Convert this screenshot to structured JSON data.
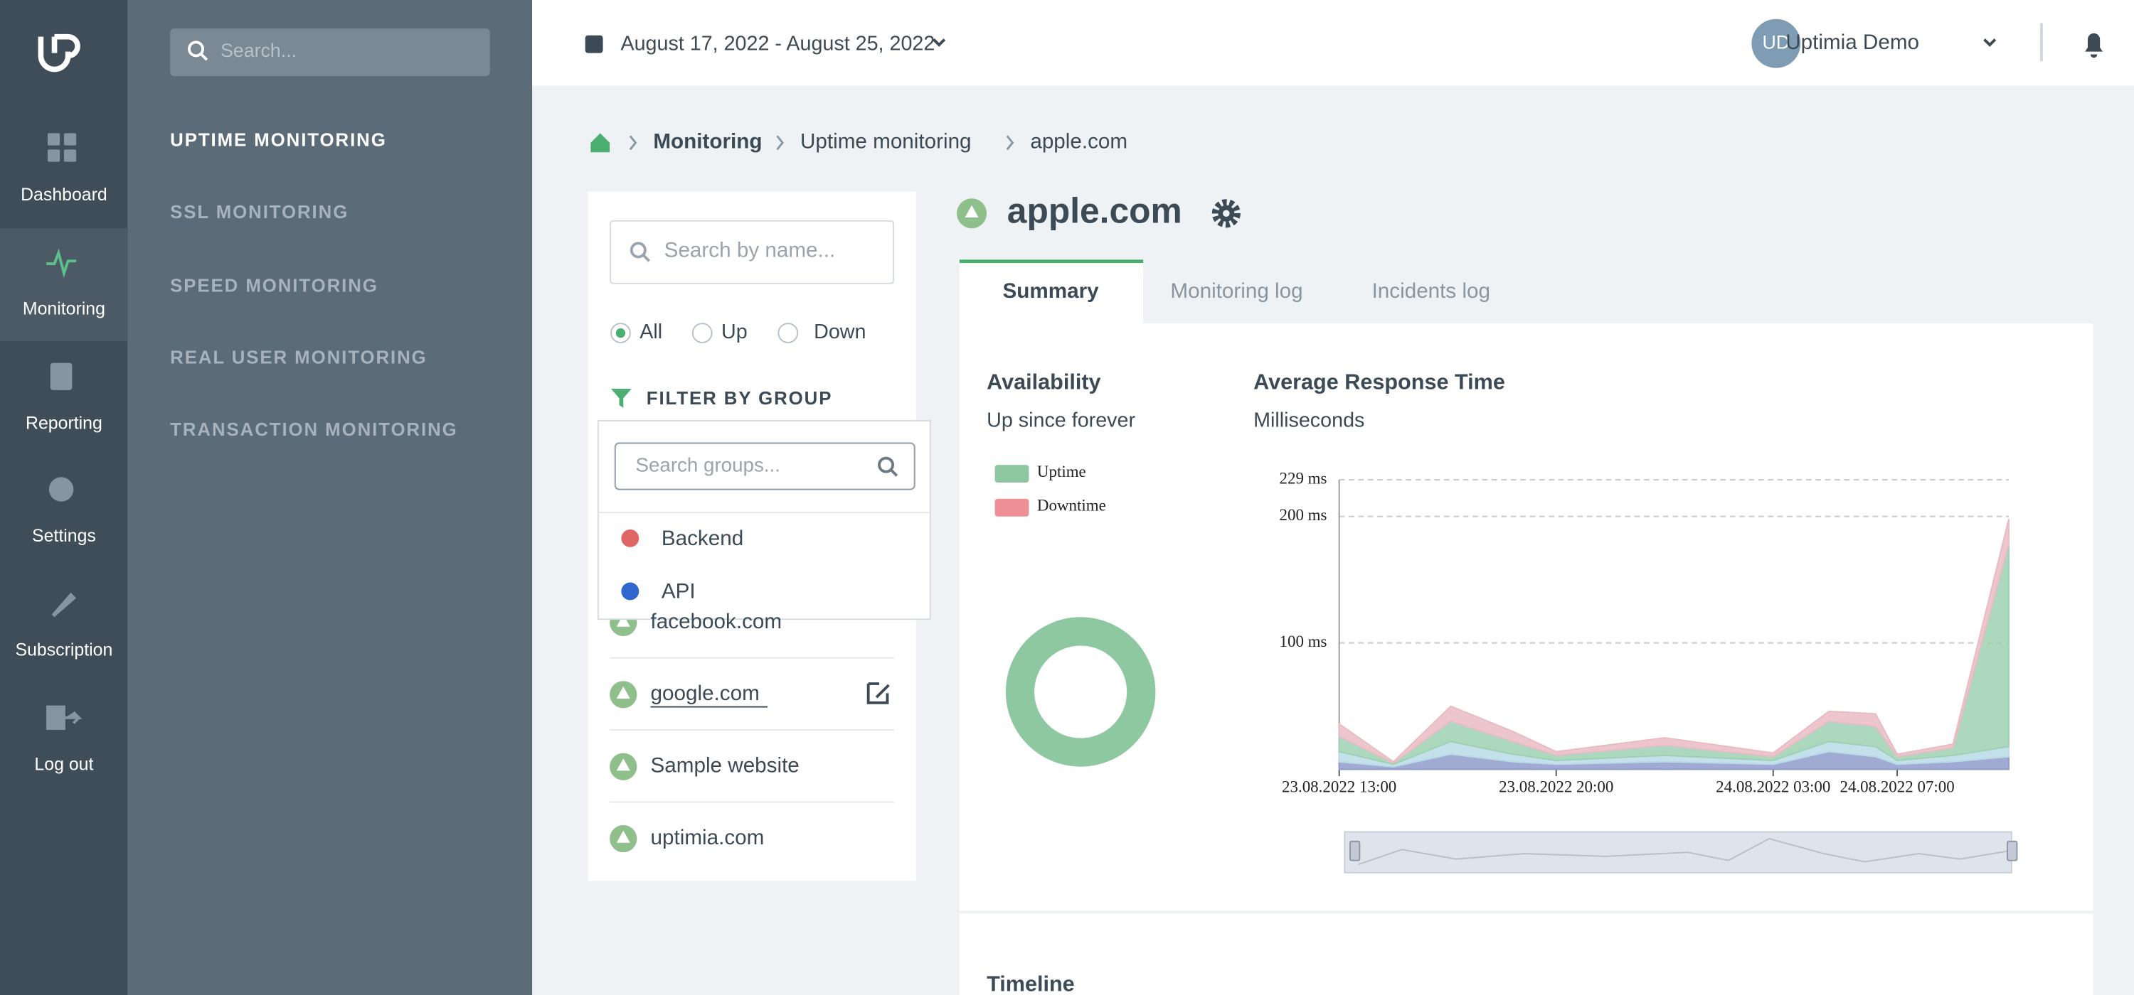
{
  "sidebar": {
    "nav": [
      "Dashboard",
      "Monitoring",
      "Reporting",
      "Settings",
      "Subscription",
      "Log out"
    ]
  },
  "submenu": {
    "search_placeholder": "Search...",
    "items": [
      "UPTIME MONITORING",
      "SSL MONITORING",
      "SPEED MONITORING",
      "REAL USER MONITORING",
      "TRANSACTION MONITORING"
    ]
  },
  "header": {
    "date_range": "August 17, 2022 - August 25, 2022",
    "avatar": "UD",
    "user": "Uptimia Demo"
  },
  "breadcrumbs": [
    "Monitoring",
    "Uptime monitoring",
    "apple.com"
  ],
  "monitors": {
    "search_placeholder": "Search by name...",
    "filters": [
      "All",
      "Up",
      "Down"
    ],
    "filter_title": "FILTER BY GROUP",
    "items": [
      "facebook.com",
      "google.com",
      "Sample website",
      "uptimia.com"
    ]
  },
  "group_dropdown": {
    "search_placeholder": "Search groups...",
    "groups": [
      "Backend",
      "API"
    ]
  },
  "monitor": {
    "title": "apple.com",
    "tabs": [
      "Summary",
      "Monitoring log",
      "Incidents log"
    ]
  },
  "timeline_title": "Timeline",
  "chart_data": [
    {
      "type": "pie",
      "title": "Availability",
      "subtitle": "Up since forever",
      "categories": [
        "Uptime",
        "Downtime"
      ],
      "values": [
        100,
        0
      ],
      "colors": [
        "#8dc8a0",
        "#ee8f95"
      ],
      "legend": "top-left"
    },
    {
      "type": "area",
      "title": "Average Response Time",
      "subtitle": "Milliseconds",
      "stacked": true,
      "grid": true,
      "x": [
        13,
        14.75,
        16.6,
        18.6,
        20,
        23.5,
        27,
        28.8,
        30.3,
        31,
        32.8,
        34.6
      ],
      "xlim": [
        13,
        34.6
      ],
      "xticks": [
        {
          "value": 13,
          "label": "23.08.2022 13:00"
        },
        {
          "value": 20,
          "label": "23.08.2022 20:00"
        },
        {
          "value": 27,
          "label": "24.08.2022 03:00"
        },
        {
          "value": 31,
          "label": "24.08.2022 07:00"
        }
      ],
      "ylim": [
        0,
        229
      ],
      "yticks": [
        {
          "value": 100,
          "label": "100 ms"
        },
        {
          "value": 200,
          "label": "200 ms"
        },
        {
          "value": 229,
          "label": "229 ms"
        }
      ],
      "series": [
        {
          "color": "#8f9bcb",
          "values": [
            6,
            2,
            12,
            6,
            4,
            6,
            4,
            14,
            10,
            4,
            6,
            10
          ]
        },
        {
          "color": "#b9dbe8",
          "values": [
            8,
            2,
            10,
            6,
            3,
            5,
            3,
            8,
            8,
            3,
            5,
            8
          ]
        },
        {
          "color": "#9dd1b3",
          "values": [
            12,
            1,
            16,
            10,
            4,
            8,
            3,
            16,
            16,
            3,
            6,
            160
          ]
        },
        {
          "color": "#e9bcc3",
          "values": [
            10,
            1,
            12,
            8,
            3,
            6,
            3,
            8,
            10,
            2,
            3,
            20
          ]
        }
      ]
    }
  ]
}
